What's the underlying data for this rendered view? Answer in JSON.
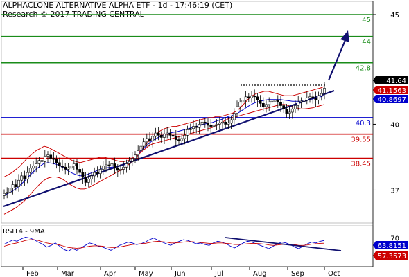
{
  "header": {
    "title": "ALPHACLONE ALTERNATIVE ALPHA ETF - 1d - 17:46:19 (CET)",
    "copyright": "Research © 2017 TRADING CENTRAL"
  },
  "chart_data": [
    {
      "type": "candlestick",
      "ylim": [
        35.5,
        45.6
      ],
      "y_ticks": [
        "45",
        "40",
        "37"
      ],
      "x_ticks": [
        "Feb",
        "Mar",
        "Apr",
        "May",
        "Jun",
        "Jul",
        "Aug",
        "Sep",
        "Oct"
      ],
      "levels": [
        {
          "value": 45,
          "label": "45",
          "color": "#1a8c1a"
        },
        {
          "value": 44,
          "label": "44",
          "color": "#1a8c1a"
        },
        {
          "value": 42.8,
          "label": "42.8",
          "color": "#1a8c1a"
        },
        {
          "value": 40.3,
          "label": "40.3",
          "color": "#0000cc"
        },
        {
          "value": 39.55,
          "label": "39.55",
          "color": "#cc0000"
        },
        {
          "value": 38.45,
          "label": "38.45",
          "color": "#cc0000"
        }
      ],
      "badges": [
        {
          "label": "41.64",
          "color": "#000000"
        },
        {
          "label": "41.1563",
          "color": "#cc0000"
        },
        {
          "label": "40.8697",
          "color": "#0000cc"
        }
      ],
      "close": [
        36.85,
        36.9,
        37.1,
        37.25,
        37.15,
        37.45,
        37.65,
        37.5,
        37.8,
        38.0,
        38.1,
        38.2,
        38.35,
        38.3,
        38.55,
        38.6,
        38.45,
        38.4,
        38.25,
        38.1,
        38.05,
        37.95,
        38.0,
        38.1,
        38.2,
        37.95,
        37.8,
        37.6,
        37.35,
        37.5,
        37.65,
        37.8,
        37.75,
        37.95,
        38.1,
        38.15,
        38.1,
        38.2,
        38.0,
        37.9,
        37.95,
        38.05,
        38.2,
        38.3,
        38.45,
        38.6,
        38.8,
        39.0,
        39.2,
        39.35,
        39.25,
        39.45,
        39.6,
        39.5,
        39.4,
        39.55,
        39.6,
        39.5,
        39.45,
        39.3,
        39.25,
        39.35,
        39.5,
        39.75,
        39.8,
        39.9,
        39.85,
        40.0,
        40.1,
        40.05,
        39.95,
        39.9,
        39.95,
        40.0,
        40.05,
        40.1,
        40.0,
        40.05,
        40.2,
        40.5,
        40.8,
        41.0,
        41.1,
        41.25,
        41.2,
        41.3,
        41.25,
        41.1,
        40.95,
        40.8,
        40.9,
        41.0,
        41.05,
        41.1,
        41.0,
        40.85,
        40.7,
        40.5,
        40.55,
        40.7,
        40.85,
        41.0,
        41.05,
        41.1,
        41.2,
        41.25,
        41.2,
        41.1,
        41.3,
        41.4,
        41.64
      ],
      "bollinger_upper": [
        37.6,
        37.7,
        37.8,
        37.95,
        38.1,
        38.3,
        38.5,
        38.65,
        38.8,
        38.9,
        39.0,
        38.95,
        38.85,
        38.75,
        38.65,
        38.55,
        38.45,
        38.35,
        38.3,
        38.25,
        38.3,
        38.35,
        38.4,
        38.45,
        38.5,
        38.5,
        38.45,
        38.4,
        38.35,
        38.3,
        38.3,
        38.35,
        38.45,
        38.6,
        38.8,
        39.0,
        39.2,
        39.4,
        39.55,
        39.7,
        39.8,
        39.85,
        39.9,
        39.9,
        39.95,
        40.0,
        40.05,
        40.1,
        40.15,
        40.2,
        40.25,
        40.3,
        40.3,
        40.35,
        40.35,
        40.4,
        40.45,
        40.5,
        40.6,
        40.75,
        40.95,
        41.15,
        41.3,
        41.4,
        41.45,
        41.5,
        41.5,
        41.45,
        41.4,
        41.35,
        41.3,
        41.3,
        41.3,
        41.35,
        41.4,
        41.45,
        41.5,
        41.55,
        41.6,
        41.65,
        41.72
      ],
      "bollinger_lower": [
        35.9,
        36.0,
        36.1,
        36.2,
        36.35,
        36.5,
        36.7,
        36.9,
        37.1,
        37.3,
        37.45,
        37.55,
        37.6,
        37.6,
        37.55,
        37.45,
        37.3,
        37.2,
        37.1,
        37.05,
        37.05,
        37.1,
        37.2,
        37.3,
        37.4,
        37.5,
        37.6,
        37.7,
        37.8,
        37.9,
        38.0,
        38.15,
        38.3,
        38.5,
        38.7,
        38.85,
        39.0,
        39.1,
        39.15,
        39.2,
        39.25,
        39.3,
        39.35,
        39.4,
        39.45,
        39.5,
        39.55,
        39.6,
        39.65,
        39.7,
        39.75,
        39.8,
        39.85,
        39.95,
        40.05,
        40.15,
        40.25,
        40.3,
        40.35,
        40.4,
        40.45,
        40.5,
        40.55,
        40.6,
        40.65,
        40.7,
        40.75,
        40.8,
        40.85,
        40.9,
        40.9,
        40.85,
        40.8,
        40.75,
        40.7,
        40.7,
        40.72,
        40.75,
        40.8,
        40.85,
        40.9
      ]
    },
    {
      "type": "line",
      "title": "RSI14 - 9MA",
      "ylim": [
        0,
        100
      ],
      "y_ticks": [
        "70"
      ],
      "badges": [
        {
          "label": "63.8151",
          "color": "#0000cc"
        },
        {
          "label": "57.3573",
          "color": "#cc0000"
        }
      ],
      "series": [
        {
          "color": "#0000cc",
          "values": [
            55,
            60,
            65,
            62,
            68,
            72,
            70,
            66,
            60,
            55,
            48,
            52,
            58,
            50,
            42,
            38,
            44,
            40,
            46,
            52,
            58,
            55,
            50,
            48,
            44,
            40,
            46,
            52,
            56,
            60,
            58,
            54,
            56,
            60,
            66,
            70,
            65,
            60,
            56,
            52,
            58,
            62,
            66,
            64,
            60,
            56,
            58,
            54,
            52,
            58,
            62,
            60,
            56,
            50,
            46,
            52,
            58,
            62,
            60,
            56,
            52,
            48,
            44,
            50,
            56,
            60,
            58,
            54,
            48,
            44,
            50,
            56,
            60,
            58,
            62,
            64
          ]
        },
        {
          "color": "#cc0000",
          "values": [
            50,
            53,
            56,
            58,
            61,
            64,
            66,
            66,
            64,
            61,
            58,
            56,
            55,
            53,
            50,
            47,
            46,
            45,
            46,
            48,
            50,
            51,
            51,
            50,
            48,
            47,
            47,
            48,
            50,
            52,
            54,
            55,
            56,
            57,
            59,
            61,
            62,
            61,
            60,
            58,
            58,
            59,
            60,
            61,
            61,
            60,
            59,
            58,
            57,
            57,
            58,
            58,
            57,
            56,
            54,
            54,
            55,
            56,
            57,
            57,
            56,
            55,
            53,
            52,
            53,
            54,
            55,
            55,
            54,
            52,
            52,
            53,
            55,
            56,
            57,
            57.36
          ]
        }
      ]
    }
  ]
}
